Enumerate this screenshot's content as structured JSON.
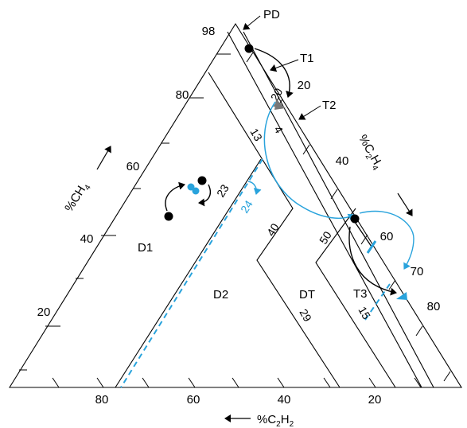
{
  "regions": {
    "pd": "PD",
    "t1": "T1",
    "t2": "T2",
    "t3": "T3",
    "d1": "D1",
    "d2": "D2",
    "dt": "DT"
  },
  "axes": {
    "ch4_label": "%CH",
    "ch4_sub": "4",
    "c2h4_label": "%C",
    "c2h4_sub1": "2",
    "c2h4_mid": "H",
    "c2h4_sub2": "4",
    "c2h2_label": "%C",
    "c2h2_sub1": "2",
    "c2h2_mid": "H",
    "c2h2_sub2": "2"
  },
  "left_ticks": [
    "98",
    "80",
    "60",
    "40",
    "20"
  ],
  "right_ticks": [
    "20",
    "40",
    "60",
    "70",
    "80"
  ],
  "bottom_ticks": [
    "80",
    "60",
    "40",
    "20"
  ],
  "boundary_labels": {
    "b20": "20",
    "b4": "4",
    "b13": "13",
    "b23": "23",
    "b24": "24",
    "b40": "40",
    "b50": "50",
    "b29": "29",
    "b15": "15"
  },
  "colors": {
    "line": "#000000",
    "blue": "#29a3dc",
    "gray_marker": "#777777",
    "background": "#ffffff"
  }
}
